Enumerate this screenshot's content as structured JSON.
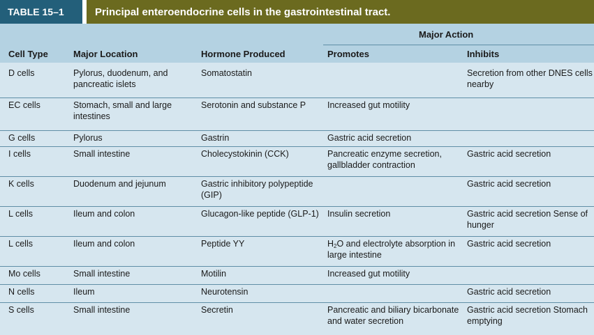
{
  "title": {
    "tag": "TABLE 15–1",
    "caption": "Principal enteroendocrine cells in the gastrointestinal tract."
  },
  "headers": {
    "group": "Major Action",
    "cell_type": "Cell Type",
    "location": "Major Location",
    "hormone": "Hormone Produced",
    "promotes": "Promotes",
    "inhibits": "Inhibits"
  },
  "rows": [
    {
      "cell": "D cells",
      "location": "Pylorus, duodenum, and pancreatic islets",
      "hormone": "Somatostatin",
      "promotes": "",
      "inhibits": "Secretion from other DNES cells nearby"
    },
    {
      "cell": "EC cells",
      "location": "Stomach, small and large intestines",
      "hormone": "Serotonin and substance P",
      "promotes": "Increased gut motility",
      "inhibits": ""
    },
    {
      "cell": "G cells",
      "location": "Pylorus",
      "hormone": "Gastrin",
      "promotes": "Gastric acid secretion",
      "inhibits": ""
    },
    {
      "cell": "I cells",
      "location": "Small intestine",
      "hormone": "Cholecystokinin (CCK)",
      "promotes": "Pancreatic enzyme secretion, gallbladder contraction",
      "inhibits": "Gastric acid secretion"
    },
    {
      "cell": "K cells",
      "location": "Duodenum and jejunum",
      "hormone": "Gastric inhibitory polypeptide (GIP)",
      "promotes": "",
      "inhibits": "Gastric acid secretion"
    },
    {
      "cell": "L cells",
      "location": "Ileum and colon",
      "hormone": "Glucagon-like peptide (GLP-1)",
      "promotes": "Insulin secretion",
      "inhibits": "Gastric acid secretion Sense of hunger"
    },
    {
      "cell": "L cells",
      "location": "Ileum and colon",
      "hormone": "Peptide YY",
      "promotes": "H2O and electrolyte absorption in large intestine",
      "inhibits": "Gastric acid secretion"
    },
    {
      "cell": "Mo cells",
      "location": "Small intestine",
      "hormone": "Motilin",
      "promotes": "Increased gut motility",
      "inhibits": ""
    },
    {
      "cell": "N cells",
      "location": "Ileum",
      "hormone": "Neurotensin",
      "promotes": "",
      "inhibits": "Gastric acid secretion"
    },
    {
      "cell": "S cells",
      "location": "Small intestine",
      "hormone": "Secretin",
      "promotes": "Pancreatic and biliary bicarbonate and water secretion",
      "inhibits": "Gastric acid secretion Stomach emptying"
    }
  ]
}
